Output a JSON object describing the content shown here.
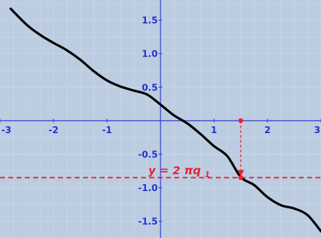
{
  "colors": {
    "background": "#bccce1",
    "grid": "#c8d6e8",
    "axis": "#3344cc",
    "tick_label": "#2233cc",
    "curve": "#000000",
    "marker": "#e8232e"
  },
  "chart_data": {
    "type": "line",
    "title": "",
    "xlabel": "",
    "ylabel": "",
    "xlim": [
      -3,
      3
    ],
    "ylim": [
      -1.75,
      1.8
    ],
    "grid": true,
    "x_ticks": [
      -3,
      -2,
      -1,
      1,
      2,
      3
    ],
    "x_tick_labels": [
      "-3",
      "-2",
      "-1",
      "1",
      "2",
      "3"
    ],
    "y_ticks": [
      1.5,
      1.0,
      0.5,
      -0.5,
      -1.0,
      -1.5
    ],
    "y_tick_labels": [
      "1.5",
      "1.0",
      "0.5",
      "-0.5",
      "-1.0",
      "-1.5"
    ],
    "series": [
      {
        "color": "#000000",
        "x": [
          -2.8,
          -2.5,
          -2.25,
          -2.0,
          -1.75,
          -1.5,
          -1.25,
          -1.0,
          -0.75,
          -0.5,
          -0.25,
          0.0,
          0.25,
          0.5,
          0.75,
          1.0,
          1.25,
          1.5,
          1.75,
          2.0,
          2.25,
          2.5,
          2.75,
          3.0
        ],
        "y": [
          1.67,
          1.43,
          1.28,
          1.16,
          1.05,
          0.91,
          0.74,
          0.6,
          0.51,
          0.45,
          0.39,
          0.24,
          0.08,
          -0.04,
          -0.2,
          -0.38,
          -0.53,
          -0.84,
          -0.96,
          -1.14,
          -1.26,
          -1.31,
          -1.41,
          -1.65
        ]
      }
    ],
    "annotation": {
      "text_lhs": "y",
      "text_rhs": "= 2 πq",
      "subscript": "1",
      "y_value": -0.85,
      "x_value": 1.5,
      "color": "#e8232e"
    }
  }
}
